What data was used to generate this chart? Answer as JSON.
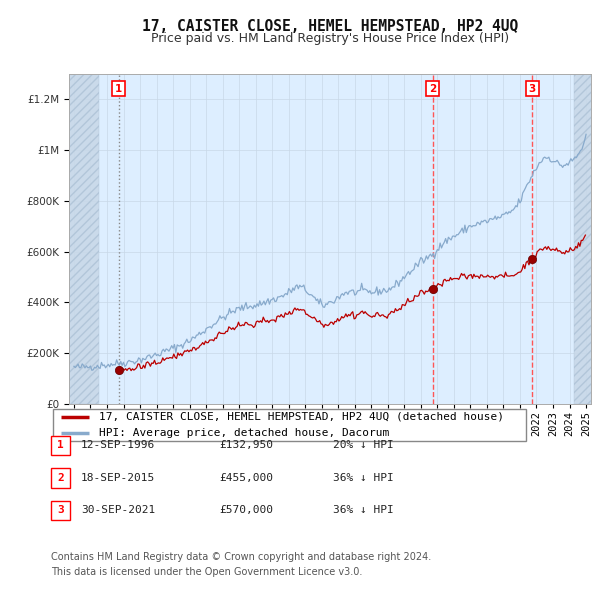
{
  "title": "17, CAISTER CLOSE, HEMEL HEMPSTEAD, HP2 4UQ",
  "subtitle": "Price paid vs. HM Land Registry's House Price Index (HPI)",
  "legend_line1": "17, CAISTER CLOSE, HEMEL HEMPSTEAD, HP2 4UQ (detached house)",
  "legend_line2": "HPI: Average price, detached house, Dacorum",
  "footer_line1": "Contains HM Land Registry data © Crown copyright and database right 2024.",
  "footer_line2": "This data is licensed under the Open Government Licence v3.0.",
  "ylim": [
    0,
    1300000
  ],
  "yticks": [
    0,
    200000,
    400000,
    600000,
    800000,
    1000000,
    1200000
  ],
  "ytick_labels": [
    "£0",
    "£200K",
    "£400K",
    "£600K",
    "£800K",
    "£1M",
    "£1.2M"
  ],
  "x_start_year": 1994,
  "x_end_year": 2025,
  "sale_dates": [
    1996.71,
    2015.71,
    2021.75
  ],
  "sale_prices": [
    132950,
    455000,
    570000
  ],
  "sale_labels": [
    "1",
    "2",
    "3"
  ],
  "sale_vline_styles": [
    "grey_dotted",
    "red_dashed",
    "red_dashed"
  ],
  "sale_info": [
    {
      "num": "1",
      "date": "12-SEP-1996",
      "price": "£132,950",
      "hpi": "20% ↓ HPI"
    },
    {
      "num": "2",
      "date": "18-SEP-2015",
      "price": "£455,000",
      "hpi": "36% ↓ HPI"
    },
    {
      "num": "3",
      "date": "30-SEP-2021",
      "price": "£570,000",
      "hpi": "36% ↓ HPI"
    }
  ],
  "property_line_color": "#bb0000",
  "hpi_line_color": "#88aacc",
  "sale_marker_color": "#990000",
  "background_color": "#ffffff",
  "plot_bg_color": "#ddeeff",
  "grid_color": "#c8d8e8",
  "title_fontsize": 10.5,
  "subtitle_fontsize": 9,
  "tick_fontsize": 7.5,
  "legend_fontsize": 8,
  "footer_fontsize": 7
}
